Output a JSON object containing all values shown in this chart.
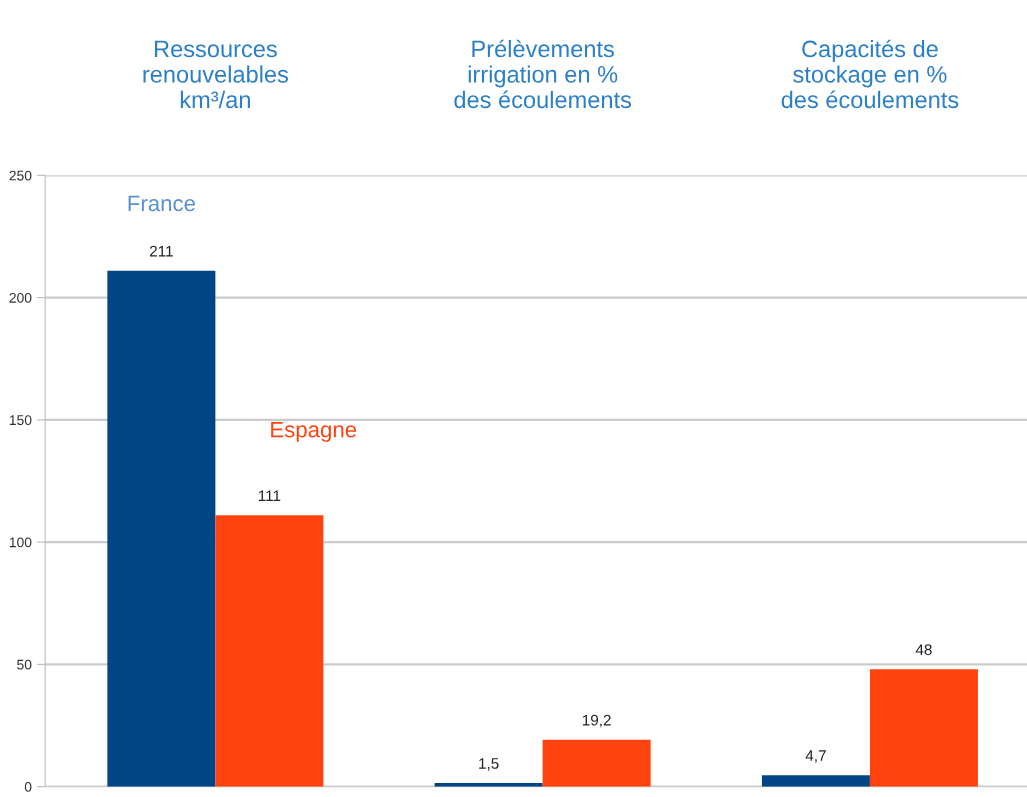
{
  "chart_data": {
    "type": "bar",
    "categories": [
      "Ressources\nrenouvelables\nkm³/an",
      "Prélèvements\nirrigation en %\ndes écoulements",
      "Capacités de\nstockage en %\ndes écoulements"
    ],
    "series": [
      {
        "name": "France",
        "color": "#004586",
        "values": [
          211,
          1.5,
          4.7
        ],
        "value_labels": [
          "211",
          "1,5",
          "4,7"
        ]
      },
      {
        "name": "Espagne",
        "color": "#ff420e",
        "values": [
          111,
          19.2,
          48
        ],
        "value_labels": [
          "111",
          "19,2",
          "48"
        ]
      }
    ],
    "ylim": [
      0,
      250
    ],
    "yticks": [
      0,
      50,
      100,
      150,
      200,
      250
    ],
    "grid": "y",
    "legend": false
  }
}
